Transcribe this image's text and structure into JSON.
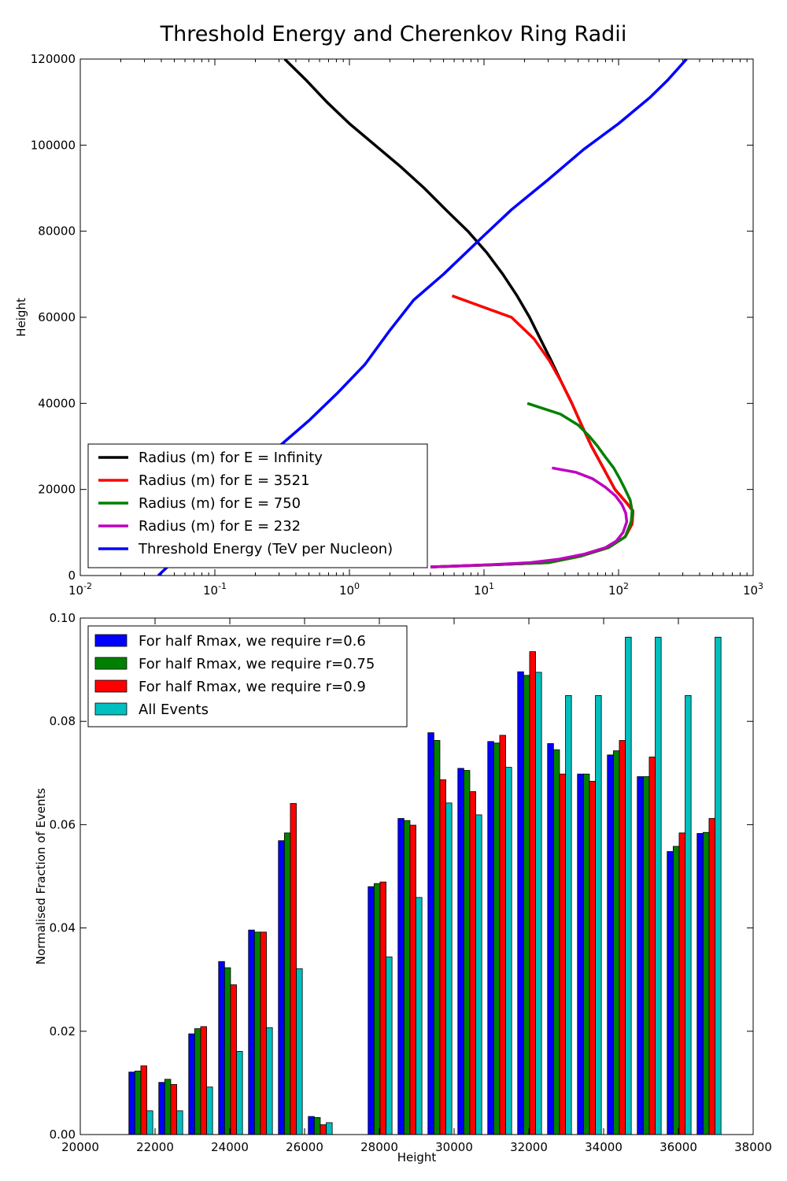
{
  "figure": {
    "suptitle": "Threshold Energy and Cherenkov Ring Radii"
  },
  "chart_data": [
    {
      "type": "line",
      "title": "",
      "xlabel": "",
      "ylabel": "Height",
      "xscale": "log",
      "xlim": [
        0.01,
        1000
      ],
      "ylim": [
        0,
        120000
      ],
      "x_ticks": [
        0.01,
        0.1,
        1,
        10,
        100,
        1000
      ],
      "x_tick_labels": [
        [
          "10",
          "-2"
        ],
        [
          "10",
          "-1"
        ],
        [
          "10",
          "0"
        ],
        [
          "10",
          "1"
        ],
        [
          "10",
          "2"
        ],
        [
          "10",
          "3"
        ]
      ],
      "y_ticks": [
        0,
        20000,
        40000,
        60000,
        80000,
        100000,
        120000
      ],
      "y_tick_labels": [
        "0",
        "20000",
        "40000",
        "60000",
        "80000",
        "100000",
        "120000"
      ],
      "grid": false,
      "legend_position": "lower-left",
      "series": [
        {
          "name": "Radius (m) for E = Infinity",
          "color": "#000000",
          "points": [
            [
              0.33,
              120000
            ],
            [
              0.48,
              115000
            ],
            [
              0.68,
              110000
            ],
            [
              1.0,
              105000
            ],
            [
              1.55,
              100000
            ],
            [
              2.4,
              95000
            ],
            [
              3.6,
              90000
            ],
            [
              5.2,
              85000
            ],
            [
              7.6,
              80000
            ],
            [
              10.5,
              75000
            ],
            [
              13.8,
              70000
            ],
            [
              17.6,
              65000
            ],
            [
              21.8,
              60000
            ],
            [
              26.2,
              55000
            ],
            [
              31.5,
              50000
            ],
            [
              37.5,
              45000
            ],
            [
              45,
              40000
            ],
            [
              53,
              35000
            ],
            [
              63,
              30000
            ],
            [
              77,
              25000
            ],
            [
              94,
              20000
            ],
            [
              114,
              17000
            ],
            [
              128,
              15000
            ],
            [
              126,
              12000
            ],
            [
              112,
              9000
            ],
            [
              84,
              6500
            ],
            [
              52,
              4500
            ],
            [
              30,
              3000
            ],
            [
              12,
              2500
            ],
            [
              4.0,
              2000
            ]
          ]
        },
        {
          "name": "Radius (m) for E = 3521",
          "color": "#ff0000",
          "points": [
            [
              5.8,
              65000
            ],
            [
              16,
              60000
            ],
            [
              23.5,
              55000
            ],
            [
              30.5,
              50000
            ],
            [
              37.5,
              45000
            ],
            [
              45,
              40000
            ],
            [
              53,
              35000
            ],
            [
              63,
              30000
            ],
            [
              77,
              25000
            ],
            [
              94,
              20000
            ],
            [
              114,
              17000
            ],
            [
              128,
              15000
            ],
            [
              126,
              12000
            ],
            [
              112,
              9000
            ],
            [
              84,
              6500
            ],
            [
              52,
              4500
            ],
            [
              30,
              3000
            ],
            [
              12,
              2500
            ],
            [
              4.0,
              2000
            ]
          ]
        },
        {
          "name": "Radius (m) for E = 750",
          "color": "#008000",
          "points": [
            [
              21,
              40000
            ],
            [
              37,
              37500
            ],
            [
              50,
              35000
            ],
            [
              60,
              32500
            ],
            [
              70,
              30000
            ],
            [
              80,
              27500
            ],
            [
              92,
              25000
            ],
            [
              102,
              22500
            ],
            [
              112,
              20000
            ],
            [
              122,
              17500
            ],
            [
              126,
              15000
            ],
            [
              124,
              12500
            ],
            [
              112,
              9000
            ],
            [
              84,
              6500
            ],
            [
              52,
              4500
            ],
            [
              30,
              3000
            ],
            [
              12,
              2500
            ],
            [
              4.0,
              2000
            ]
          ]
        },
        {
          "name": "Radius (m) for E = 232",
          "color": "#bf00bf",
          "points": [
            [
              32,
              25000
            ],
            [
              48,
              24000
            ],
            [
              64,
              22500
            ],
            [
              80,
              20500
            ],
            [
              95,
              18500
            ],
            [
              106,
              16500
            ],
            [
              113,
              14500
            ],
            [
              115,
              12500
            ],
            [
              108,
              10000
            ],
            [
              96,
              8000
            ],
            [
              80,
              6500
            ],
            [
              56,
              5000
            ],
            [
              36,
              3800
            ],
            [
              22,
              3000
            ],
            [
              11,
              2500
            ],
            [
              4.0,
              2000
            ]
          ]
        },
        {
          "name": "Threshold Energy (TeV per Nucleon)",
          "color": "#0000ff",
          "points": [
            [
              0.038,
              0
            ],
            [
              0.048,
              3000
            ],
            [
              0.068,
              8000
            ],
            [
              0.1,
              15000
            ],
            [
              0.16,
              22000
            ],
            [
              0.3,
              30000
            ],
            [
              0.5,
              36000
            ],
            [
              0.82,
              42500
            ],
            [
              1.3,
              49000
            ],
            [
              2.0,
              57000
            ],
            [
              3.0,
              64000
            ],
            [
              5.0,
              70000
            ],
            [
              10,
              79000
            ],
            [
              16,
              85000
            ],
            [
              30,
              92000
            ],
            [
              55,
              99000
            ],
            [
              100,
              105000
            ],
            [
              170,
              111000
            ],
            [
              230,
              115000
            ],
            [
              320,
              120000
            ]
          ]
        }
      ]
    },
    {
      "type": "bar",
      "title": "",
      "xlabel": "Height",
      "ylabel": "Normalised Fraction of Events",
      "xlim": [
        20000,
        38000
      ],
      "ylim": [
        0,
        0.1
      ],
      "x_ticks": [
        20000,
        22000,
        24000,
        26000,
        28000,
        30000,
        32000,
        34000,
        36000,
        38000
      ],
      "x_tick_labels": [
        "20000",
        "22000",
        "24000",
        "26000",
        "28000",
        "30000",
        "32000",
        "34000",
        "36000",
        "38000"
      ],
      "y_ticks": [
        0,
        0.02,
        0.04,
        0.06,
        0.08,
        0.1
      ],
      "y_tick_labels": [
        "0.00",
        "0.02",
        "0.04",
        "0.06",
        "0.08",
        "0.10"
      ],
      "grid": false,
      "legend_position": "upper-left",
      "bin_starts": [
        21300,
        22100,
        22900,
        23700,
        24500,
        25300,
        26100,
        26900,
        27700,
        28500,
        29300,
        30100,
        30900,
        31700,
        32500,
        33300,
        34100,
        34900,
        35700,
        36500
      ],
      "bin_width": 800,
      "series": [
        {
          "name": "For half Rmax, we require r=0.6",
          "color": "#0000ff",
          "values": [
            0.0121,
            0.0101,
            0.0195,
            0.0335,
            0.0396,
            0.0569,
            0.0035,
            0,
            0.048,
            0.0612,
            0.0778,
            0.0709,
            0.0761,
            0.0896,
            0.0757,
            0.0698,
            0.0735,
            0.0693,
            0.0548,
            0.0583
          ]
        },
        {
          "name": "For half Rmax, we require r=0.75",
          "color": "#008000",
          "values": [
            0.0123,
            0.0107,
            0.0205,
            0.0323,
            0.0392,
            0.0584,
            0.0033,
            0,
            0.0486,
            0.0608,
            0.0763,
            0.0705,
            0.0758,
            0.0889,
            0.0745,
            0.0698,
            0.0743,
            0.0693,
            0.0558,
            0.0585
          ]
        },
        {
          "name": "For half Rmax, we require r=0.9",
          "color": "#ff0000",
          "values": [
            0.0133,
            0.0097,
            0.0209,
            0.029,
            0.0392,
            0.0641,
            0.0019,
            0,
            0.0489,
            0.0599,
            0.0687,
            0.0664,
            0.0773,
            0.0935,
            0.0698,
            0.0684,
            0.0763,
            0.0731,
            0.0584,
            0.0612
          ]
        },
        {
          "name": "All Events",
          "color": "#00bfbf",
          "values": [
            0.0046,
            0.0046,
            0.0092,
            0.0161,
            0.0207,
            0.0321,
            0.0023,
            0,
            0.0344,
            0.0459,
            0.0642,
            0.0619,
            0.0711,
            0.0895,
            0.085,
            0.085,
            0.0963,
            0.0963,
            0.085,
            0.0963
          ]
        }
      ]
    }
  ]
}
